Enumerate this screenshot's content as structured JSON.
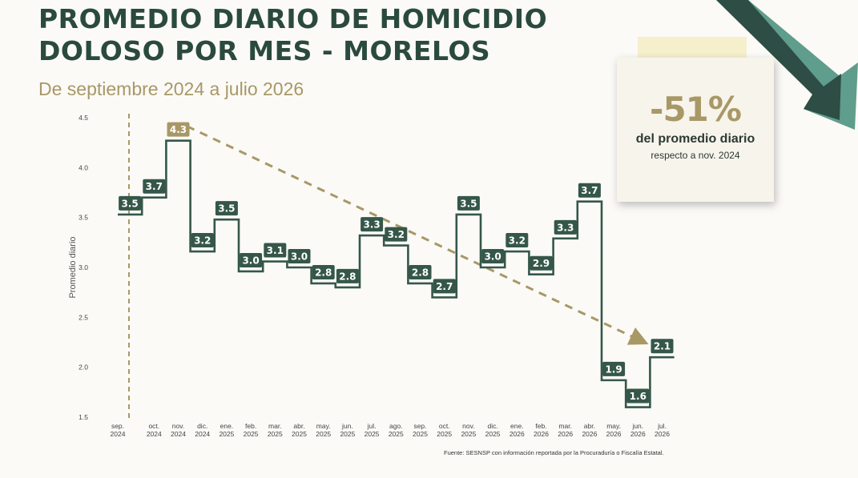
{
  "header": {
    "title_line1": "PROMEDIO DIARIO DE HOMICIDIO",
    "title_line2": "DOLOSO POR MES - MORELOS",
    "subtitle": "De septiembre 2024 a julio 2026"
  },
  "callout": {
    "value": "-51%",
    "line1": "del promedio diario",
    "line2": "respecto a nov. 2024"
  },
  "source": "Fuente: SESNSP con información reportada por la Procuraduría o Fiscalía Estatal.",
  "colors": {
    "line": "#35574a",
    "label_bg": "#35574a",
    "highlight": "#a89866",
    "title": "#2b4a3e"
  },
  "chart_data": {
    "type": "line",
    "step": true,
    "ylabel": "Promedio diario",
    "ylim": [
      1.5,
      4.5
    ],
    "yticks": [
      "1.5",
      "2.0",
      "2.5",
      "3.0",
      "3.5",
      "4.0",
      "4.5"
    ],
    "categories": [
      [
        "sep.",
        "2024"
      ],
      [
        "oct.",
        "2024"
      ],
      [
        "nov.",
        "2024"
      ],
      [
        "dic.",
        "2024"
      ],
      [
        "ene.",
        "2025"
      ],
      [
        "feb.",
        "2025"
      ],
      [
        "mar.",
        "2025"
      ],
      [
        "abr.",
        "2025"
      ],
      [
        "may.",
        "2025"
      ],
      [
        "jun.",
        "2025"
      ],
      [
        "jul.",
        "2025"
      ],
      [
        "ago.",
        "2025"
      ],
      [
        "sep.",
        "2025"
      ],
      [
        "oct.",
        "2025"
      ],
      [
        "nov.",
        "2025"
      ],
      [
        "dic.",
        "2025"
      ],
      [
        "ene.",
        "2026"
      ],
      [
        "feb.",
        "2026"
      ],
      [
        "mar.",
        "2026"
      ],
      [
        "abr.",
        "2026"
      ],
      [
        "may.",
        "2026"
      ],
      [
        "jun.",
        "2026"
      ],
      [
        "jul.",
        "2026"
      ]
    ],
    "values": [
      3.53,
      3.7,
      4.27,
      3.16,
      3.48,
      2.96,
      3.06,
      3.0,
      2.84,
      2.8,
      3.32,
      3.22,
      2.84,
      2.7,
      3.53,
      3.0,
      3.16,
      2.93,
      3.29,
      3.66,
      1.87,
      1.6,
      2.1
    ],
    "labels": [
      "3.5",
      "3.7",
      "4.3",
      "3.2",
      "3.5",
      "3.0",
      "3.1",
      "3.0",
      "2.8",
      "2.8",
      "3.3",
      "3.2",
      "2.8",
      "2.7",
      "3.5",
      "3.0",
      "3.2",
      "2.9",
      "3.3",
      "3.7",
      "1.9",
      "1.6",
      "2.1"
    ],
    "highlight_index": 2,
    "trend": {
      "from_index": 2,
      "to_index": 22,
      "style": "dashed-arrow"
    },
    "reference_line": {
      "index": 0,
      "style": "dashed-vertical"
    }
  }
}
